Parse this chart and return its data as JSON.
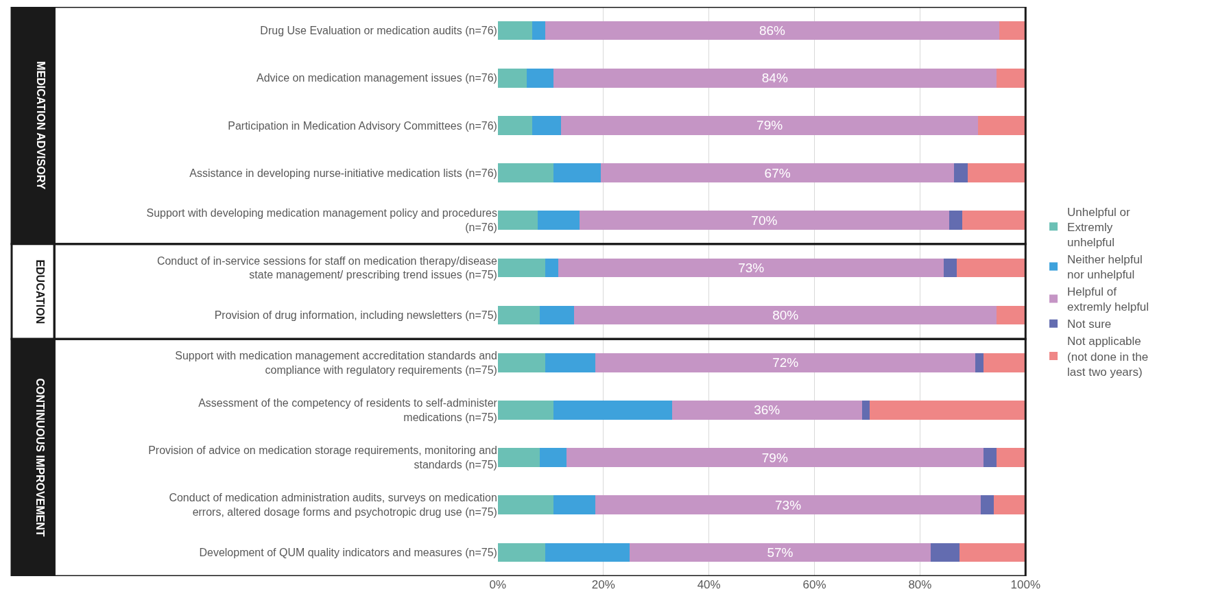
{
  "chart_data": {
    "type": "bar",
    "orientation": "horizontal",
    "stacked": true,
    "categories": [
      "Drug Use Evaluation or medication audits (n=76)",
      "Advice on medication management issues (n=76)",
      "Participation in Medication Advisory Committees (n=76)",
      "Assistance in developing nurse-initiative medication lists (n=76)",
      "Support with developing medication management policy and procedures (n=76)",
      "Conduct of in-service sessions for staff on medication therapy/disease state management/ prescribing trend issues (n=75)",
      "Provision of drug information, including newsletters (n=75)",
      "Support with medication management accreditation standards and compliance with regulatory requirements (n=75)",
      "Assessment of the competency of residents to self-administer medications (n=75)",
      "Provision of advice on medication storage requirements, monitoring and standards (n=75)",
      "Conduct of medication administration audits, surveys on medication errors, altered dosage forms and psychotropic drug use (n=75)",
      "Development of QUM quality indicators and measures (n=75)"
    ],
    "series": [
      {
        "name": "Unhelpful or Extremly unhelpful",
        "color": "#6bc0b5",
        "values": [
          6.5,
          5.5,
          6.5,
          10.5,
          7.5,
          9,
          8,
          9,
          10.5,
          8,
          10.5,
          9
        ]
      },
      {
        "name": "Neither helpful nor unhelpful",
        "color": "#3ea2dc",
        "values": [
          2.5,
          5,
          5.5,
          9,
          8,
          2.5,
          6.5,
          9.5,
          22.5,
          5,
          8,
          16
        ]
      },
      {
        "name": "Helpful of extremly helpful",
        "color": "#c595c5",
        "values": [
          86,
          84,
          79,
          67,
          70,
          73,
          80,
          72,
          36,
          79,
          73,
          57
        ],
        "value_labels": [
          "86%",
          "84%",
          "79%",
          "67%",
          "70%",
          "73%",
          "80%",
          "72%",
          "36%",
          "79%",
          "73%",
          "57%"
        ]
      },
      {
        "name": "Not sure",
        "color": "#636cb0",
        "values": [
          null,
          null,
          null,
          2.5,
          2.5,
          2.5,
          null,
          1.5,
          1.5,
          2.5,
          2.5,
          5.5
        ]
      },
      {
        "name": "Not applicable (not done in the last two years)",
        "color": "#ef8686",
        "values": [
          5,
          5.5,
          9,
          11,
          12,
          13,
          5.5,
          8,
          29.5,
          5.5,
          6,
          12.5
        ]
      }
    ],
    "xlim": [
      0,
      100
    ],
    "xticks": [
      {
        "value": 0,
        "label": "0%"
      },
      {
        "value": 20,
        "label": "20%"
      },
      {
        "value": 40,
        "label": "40%"
      },
      {
        "value": 60,
        "label": "60%"
      },
      {
        "value": 80,
        "label": "80%"
      },
      {
        "value": 100,
        "label": "100%"
      }
    ],
    "grid": "x",
    "legend": "right",
    "annotations": [
      "MEDICATION ADVISORY",
      "EDUCATION",
      "CONTINUOUS IMPROVEMENT"
    ]
  }
}
